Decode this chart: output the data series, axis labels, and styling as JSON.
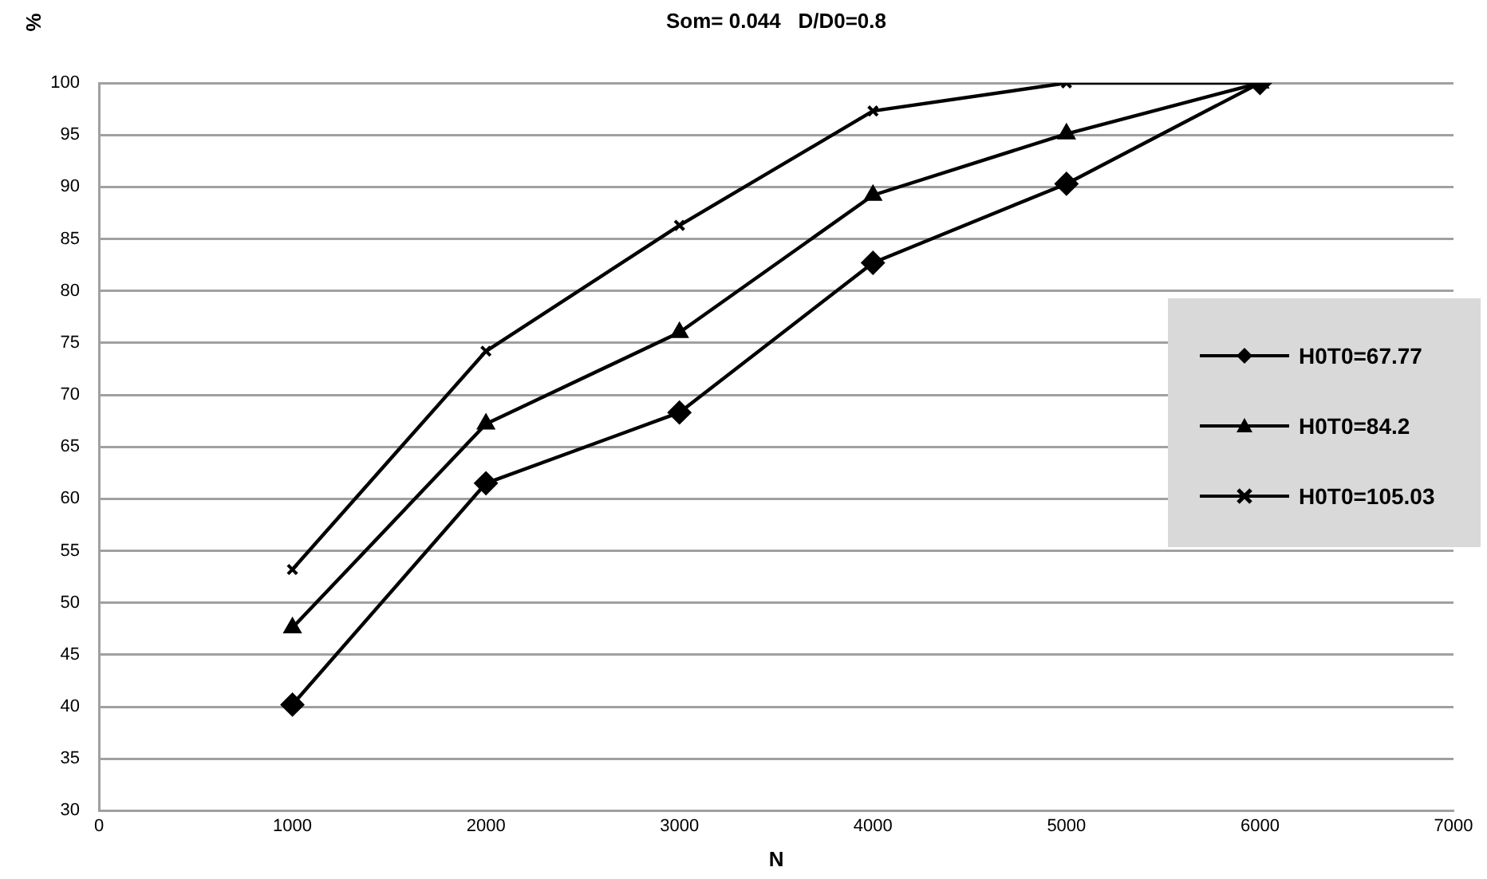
{
  "chart_data": {
    "type": "line",
    "title": "Som= 0.044   D/D0=0.8",
    "xlabel": "N",
    "ylabel": "%",
    "x": [
      1000,
      2000,
      3000,
      4000,
      5000,
      6000
    ],
    "series": [
      {
        "name": "H0T0=67.77",
        "color": "#000000",
        "marker": "diamond",
        "values": [
          40.2,
          61.5,
          68.3,
          82.7,
          90.3,
          100
        ]
      },
      {
        "name": "H0T0=84.2",
        "color": "#000000",
        "marker": "triangle",
        "values": [
          47.6,
          67.2,
          76.0,
          89.2,
          95.1,
          100
        ]
      },
      {
        "name": "H0T0=105.03",
        "color": "#000000",
        "marker": "cross",
        "values": [
          53.2,
          74.2,
          86.3,
          97.3,
          100,
          100
        ]
      }
    ],
    "xlim": [
      0,
      7000
    ],
    "xticks": [
      0,
      1000,
      2000,
      3000,
      4000,
      5000,
      6000,
      7000
    ],
    "ylim": [
      30,
      100
    ],
    "yticks": [
      30,
      35,
      40,
      45,
      50,
      55,
      60,
      65,
      70,
      75,
      80,
      85,
      90,
      95,
      100
    ],
    "grid": "y",
    "legend": "right",
    "line_style": "solid"
  }
}
